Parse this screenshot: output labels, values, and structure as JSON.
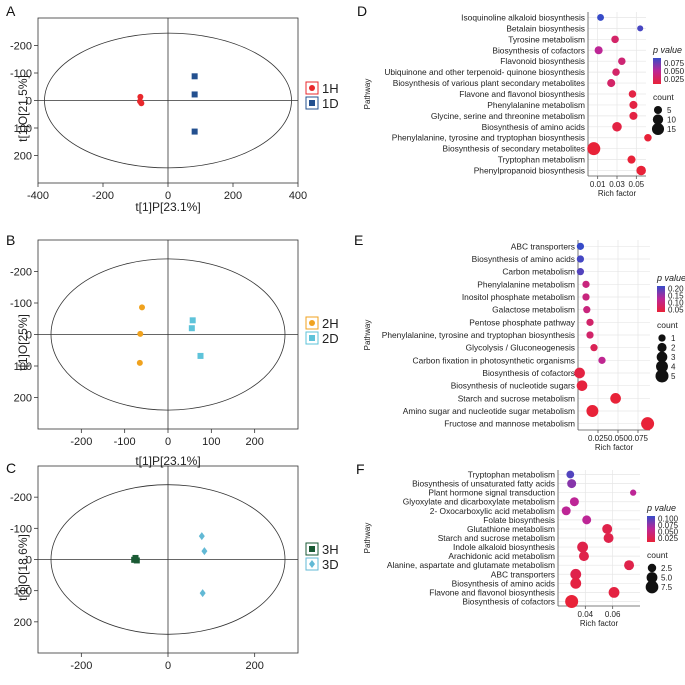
{
  "figure": {
    "opls": [
      {
        "letter": "A",
        "xlabel": "t[1]P[23.1%]",
        "ylabel": "t[1]O[21.5%]",
        "xlim": [
          -400,
          400
        ],
        "ylim": [
          -300,
          300
        ],
        "xticks": [
          -400,
          -200,
          0,
          200,
          400
        ],
        "xtick_labels": [
          "-400",
          "-200",
          "0",
          "200",
          "400"
        ],
        "yticks": [
          -200,
          -100,
          0,
          100,
          200
        ],
        "ytick_labels": [
          "-200",
          "-100",
          "0",
          "100",
          "200"
        ],
        "ellipse": {
          "rx": 380,
          "ry": 245
        },
        "groups": [
          {
            "label": "1H",
            "marker": "circle",
            "color": "#e8282c",
            "points": [
              [
                -85,
                -13
              ],
              [
                -86,
                3
              ],
              [
                -82,
                10
              ]
            ]
          },
          {
            "label": "1D",
            "marker": "square",
            "color": "#23508f",
            "points": [
              [
                82,
                -88
              ],
              [
                82,
                -22
              ],
              [
                82,
                113
              ]
            ]
          }
        ]
      },
      {
        "letter": "B",
        "xlabel": "t[1]P[23.1%]",
        "ylabel": "t[1]O[25%]",
        "xlim": [
          -300,
          300
        ],
        "ylim": [
          -300,
          300
        ],
        "xticks": [
          -200,
          -100,
          0,
          100,
          200
        ],
        "xtick_labels": [
          "-200",
          "-100",
          "0",
          "100",
          "200"
        ],
        "yticks": [
          -200,
          -100,
          0,
          100,
          200
        ],
        "ytick_labels": [
          "-200",
          "-100",
          "0",
          "100",
          "200"
        ],
        "ellipse": {
          "rx": 270,
          "ry": 240
        },
        "groups": [
          {
            "label": "2H",
            "marker": "circle",
            "color": "#f0a21e",
            "points": [
              [
                -60,
                -86
              ],
              [
                -64,
                -2
              ],
              [
                -65,
                90
              ]
            ]
          },
          {
            "label": "2D",
            "marker": "square",
            "color": "#5ec3da",
            "points": [
              [
                57,
                -45
              ],
              [
                55,
                -20
              ],
              [
                75,
                68
              ]
            ]
          }
        ]
      },
      {
        "letter": "C",
        "xlabel": "",
        "ylabel": "t[1]O[18.6%]",
        "xlim": [
          -300,
          300
        ],
        "ylim": [
          -300,
          300
        ],
        "xticks": [
          -200,
          0,
          200
        ],
        "xtick_labels": [
          "-200",
          "0",
          "200"
        ],
        "yticks": [
          -200,
          -100,
          0,
          100,
          200
        ],
        "ytick_labels": [
          "-200",
          "-100",
          "0",
          "100",
          "200"
        ],
        "ellipse": {
          "rx": 270,
          "ry": 240
        },
        "groups": [
          {
            "label": "3H",
            "marker": "square",
            "color": "#1a5a34",
            "points": [
              [
                -75,
                -5
              ],
              [
                -72,
                3
              ],
              [
                -78,
                1
              ]
            ]
          },
          {
            "label": "3D",
            "marker": "diamond",
            "color": "#62b9d5",
            "points": [
              [
                78,
                -75
              ],
              [
                84,
                -27
              ],
              [
                80,
                108
              ]
            ]
          }
        ]
      }
    ],
    "enrichment": [
      {
        "letter": "D",
        "xlabel": "Rich factor",
        "ylabel": "Pathway",
        "xlim": [
          0.0,
          0.06
        ],
        "xticks": [
          0.01,
          0.03,
          0.05
        ],
        "xtick_labels": [
          "0.01",
          "0.03",
          "0.05"
        ],
        "legend_p_title": "p value",
        "legend_p_range": [
          0.01,
          0.09
        ],
        "legend_p_ticks": [
          0.075,
          0.05,
          0.025
        ],
        "legend_p_labels": [
          "0.075",
          "0.050",
          "0.025"
        ],
        "legend_count_title": "count",
        "legend_count": [
          5,
          10,
          15
        ],
        "legend_count_labels": [
          "5",
          "10",
          "15"
        ],
        "pathways": [
          {
            "name": "Isoquinoline alkaloid biosynthesis",
            "rich": 0.013,
            "count": 3,
            "p": 0.09
          },
          {
            "name": "Betalain biosynthesis",
            "rich": 0.054,
            "count": 2,
            "p": 0.085
          },
          {
            "name": "Tyrosine metabolism",
            "rich": 0.028,
            "count": 4,
            "p": 0.03
          },
          {
            "name": "Biosynthesis of cofactors",
            "rich": 0.011,
            "count": 5,
            "p": 0.05
          },
          {
            "name": "Flavonoid biosynthesis",
            "rich": 0.035,
            "count": 4,
            "p": 0.035
          },
          {
            "name": "Ubiquinone and other terpenoid- quinone biosynthesis",
            "rich": 0.029,
            "count": 4,
            "p": 0.03
          },
          {
            "name": "Biosynthesis of various plant secondary metabolites",
            "rich": 0.024,
            "count": 5,
            "p": 0.03
          },
          {
            "name": "Flavone and flavonol biosynthesis",
            "rich": 0.046,
            "count": 4,
            "p": 0.015
          },
          {
            "name": "Phenylalanine metabolism",
            "rich": 0.047,
            "count": 5,
            "p": 0.015
          },
          {
            "name": "Glycine, serine and threonine metabolism",
            "rich": 0.047,
            "count": 5,
            "p": 0.015
          },
          {
            "name": "Biosynthesis of amino acids",
            "rich": 0.03,
            "count": 8,
            "p": 0.015
          },
          {
            "name": "Phenylalanine, tyrosine and tryptophan biosynthesis",
            "rich": 0.062,
            "count": 4,
            "p": 0.01
          },
          {
            "name": "Biosynthesis of secondary metabolites",
            "rich": 0.006,
            "count": 18,
            "p": 0.01
          },
          {
            "name": "Tryptophan metabolism",
            "rich": 0.045,
            "count": 5,
            "p": 0.01
          },
          {
            "name": "Phenylpropanoid biosynthesis",
            "rich": 0.055,
            "count": 8,
            "p": 0.01
          }
        ]
      },
      {
        "letter": "E",
        "xlabel": "Rich factor",
        "ylabel": "Pathway",
        "xlim": [
          0.0,
          0.09
        ],
        "xticks": [
          0.025,
          0.05,
          0.075
        ],
        "xtick_labels": [
          "0.025",
          "0.050",
          "0.075"
        ],
        "legend_p_title": "p value",
        "legend_p_range": [
          0.03,
          0.22
        ],
        "legend_p_ticks": [
          0.2,
          0.15,
          0.1,
          0.05
        ],
        "legend_p_labels": [
          "0.20",
          "0.15",
          "0.10",
          "0.05"
        ],
        "legend_count_title": "count",
        "legend_count": [
          1,
          2,
          3,
          4,
          5
        ],
        "legend_count_labels": [
          "1",
          "2",
          "3",
          "4",
          "5"
        ],
        "pathways": [
          {
            "name": "ABC transporters",
            "rich": 0.003,
            "count": 1,
            "p": 0.22
          },
          {
            "name": "Biosynthesis of amino acids",
            "rich": 0.003,
            "count": 1,
            "p": 0.21
          },
          {
            "name": "Carbon metabolism",
            "rich": 0.003,
            "count": 1,
            "p": 0.2
          },
          {
            "name": "Phenylalanine metabolism",
            "rich": 0.01,
            "count": 1,
            "p": 0.1
          },
          {
            "name": "Inositol phosphate metabolism",
            "rich": 0.01,
            "count": 1,
            "p": 0.1
          },
          {
            "name": "Galactose metabolism",
            "rich": 0.011,
            "count": 1,
            "p": 0.1
          },
          {
            "name": "Pentose phosphate pathway",
            "rich": 0.015,
            "count": 1,
            "p": 0.08
          },
          {
            "name": "Phenylalanine, tyrosine and tryptophan biosynthesis",
            "rich": 0.015,
            "count": 1,
            "p": 0.08
          },
          {
            "name": "Glycolysis / Gluconeogenesis",
            "rich": 0.02,
            "count": 1,
            "p": 0.06
          },
          {
            "name": "Carbon fixation in photosynthetic organisms",
            "rich": 0.03,
            "count": 1,
            "p": 0.12
          },
          {
            "name": "Biosynthesis of cofactors",
            "rich": 0.002,
            "count": 3,
            "p": 0.04
          },
          {
            "name": "Biosynthesis of nucleotide sugars",
            "rich": 0.005,
            "count": 3,
            "p": 0.035
          },
          {
            "name": "Starch and sucrose metabolism",
            "rich": 0.047,
            "count": 3,
            "p": 0.03
          },
          {
            "name": "Amino sugar and nucleotide sugar metabolism",
            "rich": 0.018,
            "count": 4,
            "p": 0.03
          },
          {
            "name": "Fructose and mannose metabolism",
            "rich": 0.087,
            "count": 5,
            "p": 0.03
          }
        ]
      },
      {
        "letter": "F",
        "xlabel": "Rich factor",
        "ylabel": "Pathway",
        "xlim": [
          0.02,
          0.08
        ],
        "xticks": [
          0.04,
          0.06
        ],
        "xtick_labels": [
          "0.04",
          "0.06"
        ],
        "legend_p_title": "p value",
        "legend_p_range": [
          0.01,
          0.11
        ],
        "legend_p_ticks": [
          0.1,
          0.075,
          0.05,
          0.025
        ],
        "legend_p_labels": [
          "0.100",
          "0.075",
          "0.050",
          "0.025"
        ],
        "legend_count_title": "count",
        "legend_count": [
          2.5,
          5.0,
          7.5
        ],
        "legend_count_labels": [
          "2.5",
          "5.0",
          "7.5"
        ],
        "pathways": [
          {
            "name": "Tryptophan metabolism",
            "rich": 0.029,
            "count": 2,
            "p": 0.1
          },
          {
            "name": "Biosynthesis of unsaturated fatty acids",
            "rich": 0.03,
            "count": 3,
            "p": 0.08
          },
          {
            "name": "Plant hormone signal transduction",
            "rich": 0.075,
            "count": 1,
            "p": 0.06
          },
          {
            "name": "Glyoxylate and dicarboxylate metabolism",
            "rich": 0.032,
            "count": 3,
            "p": 0.06
          },
          {
            "name": "2- Oxocarboxylic acid metabolism",
            "rich": 0.026,
            "count": 3,
            "p": 0.06
          },
          {
            "name": "Folate biosynthesis",
            "rich": 0.041,
            "count": 3,
            "p": 0.06
          },
          {
            "name": "Glutathione metabolism",
            "rich": 0.056,
            "count": 4,
            "p": 0.02
          },
          {
            "name": "Starch and sucrose metabolism",
            "rich": 0.057,
            "count": 4,
            "p": 0.02
          },
          {
            "name": "Indole alkaloid biosynthesis",
            "rich": 0.038,
            "count": 5,
            "p": 0.02
          },
          {
            "name": "Arachidonic acid metabolism",
            "rich": 0.039,
            "count": 4,
            "p": 0.02
          },
          {
            "name": "Alanine, aspartate and glutamate metabolism",
            "rich": 0.072,
            "count": 4,
            "p": 0.02
          },
          {
            "name": "ABC transporters",
            "rich": 0.033,
            "count": 5,
            "p": 0.02
          },
          {
            "name": "Biosynthesis of amino acids",
            "rich": 0.033,
            "count": 5,
            "p": 0.015
          },
          {
            "name": "Flavone and flavonol biosynthesis",
            "rich": 0.061,
            "count": 5,
            "p": 0.015
          },
          {
            "name": "Biosynthesis of cofactors",
            "rich": 0.03,
            "count": 8,
            "p": 0.01
          }
        ]
      }
    ]
  }
}
